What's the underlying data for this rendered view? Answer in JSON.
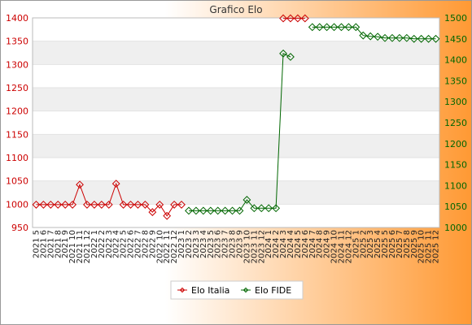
{
  "chart_data": {
    "type": "line",
    "title": "Grafico Elo",
    "x": [
      "2021 5",
      "2021 6",
      "2021 7",
      "2021 8",
      "2021 9",
      "2021 10",
      "2021 11",
      "2021 12",
      "2022 1",
      "2022 2",
      "2022 3",
      "2022 4",
      "2022 5",
      "2022 6",
      "2022 7",
      "2022 8",
      "2022 9",
      "2022 10",
      "2022 11",
      "2022 12",
      "2023 1",
      "2023 2",
      "2023 3",
      "2023 4",
      "2023 5",
      "2023 6",
      "2023 7",
      "2023 8",
      "2023 9",
      "2023 10",
      "2023 11",
      "2023 12",
      "2024 1",
      "2024 2",
      "2024 3",
      "2024 4",
      "2024 5",
      "2024 6",
      "2024 7",
      "2024 8",
      "2024 9",
      "2024 10",
      "2024 11",
      "2024 12",
      "2025 1",
      "2025 2",
      "2025 3",
      "2025 4",
      "2025 5",
      "2025 6",
      "2025 7",
      "2025 8",
      "2025 9",
      "2025 10",
      "2025 11",
      "2025 12"
    ],
    "series": [
      {
        "name": "Elo Italia",
        "axis": "left",
        "color": "#cc0000",
        "values": [
          999,
          999,
          999,
          999,
          999,
          999,
          1042,
          999,
          999,
          999,
          999,
          1044,
          999,
          999,
          999,
          999,
          983,
          999,
          975,
          999,
          999,
          null,
          null,
          null,
          null,
          null,
          null,
          null,
          null,
          null,
          null,
          null,
          null,
          null,
          1399,
          1399,
          1399,
          1399,
          null,
          null,
          null,
          null,
          null,
          null,
          null,
          null,
          null,
          null,
          null,
          null,
          null,
          null,
          null,
          null,
          null,
          null
        ]
      },
      {
        "name": "Elo FIDE",
        "axis": "right",
        "color": "#006600",
        "values": [
          null,
          null,
          null,
          null,
          null,
          null,
          null,
          null,
          null,
          null,
          null,
          null,
          null,
          null,
          null,
          null,
          null,
          null,
          null,
          null,
          null,
          1040,
          1040,
          1040,
          1040,
          1040,
          1040,
          1040,
          1040,
          1066,
          1046,
          1046,
          1046,
          1046,
          1415,
          1407,
          null,
          null,
          1478,
          1478,
          1478,
          1478,
          1478,
          1478,
          1478,
          1458,
          1456,
          1455,
          1452,
          1452,
          1452,
          1452,
          1450,
          1450,
          1450,
          1450
        ]
      }
    ],
    "ylim_left": [
      950,
      1400
    ],
    "yticks_left": [
      950,
      1000,
      1050,
      1100,
      1150,
      1200,
      1250,
      1300,
      1350,
      1400
    ],
    "ylim_right": [
      1000,
      1500
    ],
    "yticks_right": [
      1000,
      1050,
      1100,
      1150,
      1200,
      1250,
      1300,
      1350,
      1400,
      1450,
      1500
    ],
    "left_axis_color": "#cc0000",
    "right_axis_color": "#006600",
    "grid": "horizontal-bands",
    "legend_position": "bottom"
  }
}
